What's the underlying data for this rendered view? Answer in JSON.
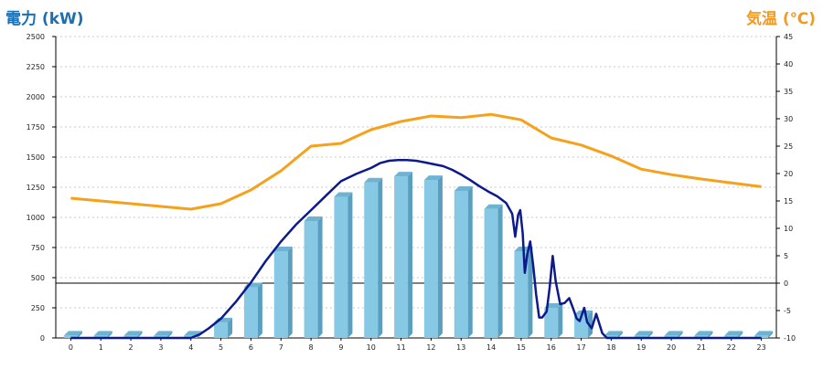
{
  "chart_data": {
    "type": "bar+line",
    "left_axis": {
      "title": "電力 (kW)",
      "range": [
        0,
        2500
      ],
      "ticks": [
        "0",
        "250",
        "500",
        "750",
        "1000",
        "1250",
        "1500",
        "1750",
        "2000",
        "2250",
        "2500"
      ]
    },
    "right_axis": {
      "title": "気温 (℃)",
      "range": [
        -10,
        45
      ],
      "ticks": [
        "-10",
        "-5",
        "0",
        "5",
        "10",
        "15",
        "20",
        "25",
        "30",
        "35",
        "40",
        "45"
      ]
    },
    "x_ticks": [
      "0",
      "1",
      "2",
      "3",
      "4",
      "5",
      "6",
      "7",
      "8",
      "9",
      "10",
      "11",
      "12",
      "13",
      "14",
      "15",
      "16",
      "17",
      "18",
      "19",
      "20",
      "21",
      "22",
      "23"
    ],
    "bar_values": [
      20,
      20,
      20,
      20,
      20,
      130,
      420,
      720,
      970,
      1170,
      1290,
      1340,
      1310,
      1220,
      1070,
      720,
      250,
      190,
      20,
      20,
      20,
      20,
      20,
      20
    ],
    "power_line": {
      "x": [
        0,
        1,
        2,
        3,
        4,
        4.3,
        4.6,
        5,
        5.5,
        6,
        6.5,
        7,
        7.5,
        8,
        8.5,
        9,
        9.5,
        10,
        10.3,
        10.6,
        10.9,
        11.2,
        11.5,
        11.8,
        12.1,
        12.4,
        12.7,
        13,
        13.3,
        13.6,
        13.9,
        14.2,
        14.5,
        14.7,
        14.8,
        14.9,
        14.97,
        15.05,
        15.12,
        15.2,
        15.3,
        15.4,
        15.5,
        15.6,
        15.7,
        15.85,
        15.95,
        16.05,
        16.15,
        16.3,
        16.45,
        16.6,
        16.75,
        16.85,
        16.95,
        17.1,
        17.2,
        17.35,
        17.5,
        17.7,
        17.85,
        18,
        19,
        20,
        21,
        22,
        23
      ],
      "values": [
        0,
        0,
        0,
        0,
        0,
        30,
        80,
        160,
        300,
        460,
        640,
        800,
        940,
        1060,
        1180,
        1300,
        1360,
        1410,
        1450,
        1470,
        1475,
        1475,
        1470,
        1455,
        1440,
        1425,
        1395,
        1355,
        1310,
        1260,
        1215,
        1175,
        1120,
        1030,
        840,
        1020,
        1060,
        870,
        540,
        690,
        800,
        600,
        360,
        170,
        170,
        220,
        420,
        680,
        470,
        280,
        290,
        330,
        230,
        160,
        140,
        250,
        130,
        80,
        200,
        40,
        0,
        0,
        0,
        0,
        0,
        0,
        0
      ]
    },
    "temperature_line": {
      "x": [
        0,
        4,
        5,
        6,
        7,
        8,
        9,
        10,
        11,
        12,
        13,
        14,
        15,
        16,
        17,
        18,
        19,
        20,
        21,
        22,
        23
      ],
      "values": [
        15.5,
        13.5,
        14.5,
        17,
        20.5,
        25,
        25.5,
        28,
        29.5,
        30.5,
        30.2,
        30.8,
        29.8,
        26.5,
        25.2,
        23.2,
        20.8,
        19.8,
        19,
        18.3,
        17.6
      ]
    },
    "colors": {
      "bar_front": "#87c9e4",
      "bar_side": "#5a9fbf",
      "bar_top": "#6eb3d2",
      "power_line": "#0c1a8c",
      "temperature_line": "#f5a11c",
      "left_title": "#1b6fb3",
      "right_title": "#f39a1e",
      "grid": "#c8c8c8"
    },
    "grid": "horizontal dashed",
    "zero_line": "horizontal line at 0 ℃"
  }
}
